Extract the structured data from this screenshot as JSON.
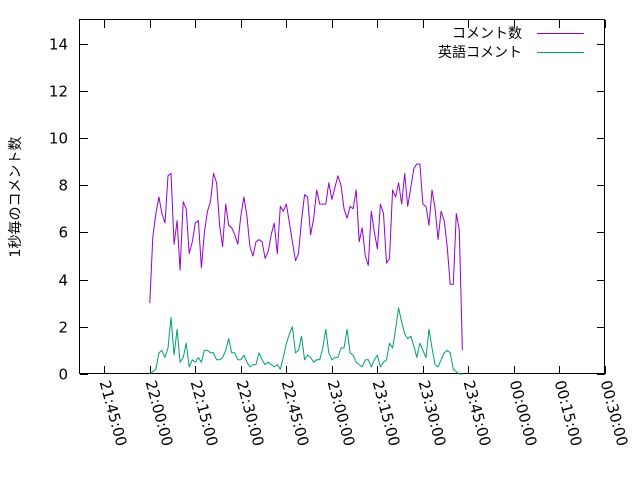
{
  "chart_data": {
    "type": "line",
    "ylabel": "1秒毎のコメント数",
    "xlabel": "",
    "ylim": [
      0,
      15
    ],
    "y_ticks": [
      0,
      2,
      4,
      6,
      8,
      10,
      12,
      14
    ],
    "y_tick_labels": [
      "0",
      "2",
      "4",
      "6",
      "8",
      "10",
      "12",
      "14"
    ],
    "xlim": [
      "21:37:00",
      "00:30:00"
    ],
    "x_ticks": [
      "21:45:00",
      "22:00:00",
      "22:15:00",
      "22:30:00",
      "22:45:00",
      "23:00:00",
      "23:15:00",
      "23:30:00",
      "23:45:00",
      "00:00:00",
      "00:15:00",
      "00:30:00"
    ],
    "grid": false,
    "legend_position": "top-right",
    "series": [
      {
        "name": "コメント数",
        "color": "#9400d3",
        "points": [
          [
            "22:00:00",
            3.0
          ],
          [
            "22:01:00",
            5.8
          ],
          [
            "22:02:00",
            6.8
          ],
          [
            "22:03:00",
            7.5
          ],
          [
            "22:04:00",
            6.8
          ],
          [
            "22:05:00",
            6.4
          ],
          [
            "22:06:00",
            8.4
          ],
          [
            "22:07:00",
            8.5
          ],
          [
            "22:08:00",
            5.5
          ],
          [
            "22:09:00",
            6.5
          ],
          [
            "22:10:00",
            4.4
          ],
          [
            "22:11:00",
            7.3
          ],
          [
            "22:12:00",
            7.0
          ],
          [
            "22:13:00",
            5.1
          ],
          [
            "22:14:00",
            5.6
          ],
          [
            "22:15:00",
            6.4
          ],
          [
            "22:16:00",
            6.5
          ],
          [
            "22:17:00",
            4.5
          ],
          [
            "22:18:00",
            6.0
          ],
          [
            "22:19:00",
            6.9
          ],
          [
            "22:20:00",
            7.3
          ],
          [
            "22:21:00",
            8.5
          ],
          [
            "22:22:00",
            8.1
          ],
          [
            "22:23:00",
            6.3
          ],
          [
            "22:24:00",
            5.4
          ],
          [
            "22:25:00",
            7.2
          ],
          [
            "22:26:00",
            6.3
          ],
          [
            "22:27:00",
            6.2
          ],
          [
            "22:28:00",
            5.9
          ],
          [
            "22:29:00",
            5.5
          ],
          [
            "22:30:00",
            6.7
          ],
          [
            "22:31:00",
            7.5
          ],
          [
            "22:32:00",
            6.7
          ],
          [
            "22:33:00",
            5.4
          ],
          [
            "22:34:00",
            5.0
          ],
          [
            "22:35:00",
            5.6
          ],
          [
            "22:36:00",
            5.7
          ],
          [
            "22:37:00",
            5.6
          ],
          [
            "22:38:00",
            4.9
          ],
          [
            "22:39:00",
            5.2
          ],
          [
            "22:40:00",
            5.9
          ],
          [
            "22:41:00",
            6.4
          ],
          [
            "22:42:00",
            5.1
          ],
          [
            "22:43:00",
            7.1
          ],
          [
            "22:44:00",
            6.9
          ],
          [
            "22:45:00",
            7.2
          ],
          [
            "22:46:00",
            6.4
          ],
          [
            "22:47:00",
            5.6
          ],
          [
            "22:48:00",
            4.8
          ],
          [
            "22:49:00",
            5.1
          ],
          [
            "22:50:00",
            6.5
          ],
          [
            "22:51:00",
            7.6
          ],
          [
            "22:52:00",
            7.5
          ],
          [
            "22:53:00",
            5.9
          ],
          [
            "22:54:00",
            6.6
          ],
          [
            "22:55:00",
            7.8
          ],
          [
            "22:56:00",
            7.2
          ],
          [
            "22:57:00",
            7.2
          ],
          [
            "22:58:00",
            7.2
          ],
          [
            "22:59:00",
            8.1
          ],
          [
            "23:00:00",
            7.4
          ],
          [
            "23:01:00",
            7.9
          ],
          [
            "23:02:00",
            8.4
          ],
          [
            "23:03:00",
            8.0
          ],
          [
            "23:04:00",
            7.0
          ],
          [
            "23:05:00",
            6.6
          ],
          [
            "23:06:00",
            7.1
          ],
          [
            "23:07:00",
            7.0
          ],
          [
            "23:08:00",
            7.8
          ],
          [
            "23:09:00",
            5.6
          ],
          [
            "23:10:00",
            6.2
          ],
          [
            "23:11:00",
            5.0
          ],
          [
            "23:12:00",
            4.6
          ],
          [
            "23:13:00",
            6.9
          ],
          [
            "23:14:00",
            6.0
          ],
          [
            "23:15:00",
            5.3
          ],
          [
            "23:16:00",
            7.2
          ],
          [
            "23:17:00",
            6.8
          ],
          [
            "23:18:00",
            4.7
          ],
          [
            "23:19:00",
            4.9
          ],
          [
            "23:20:00",
            7.8
          ],
          [
            "23:21:00",
            7.5
          ],
          [
            "23:22:00",
            8.1
          ],
          [
            "23:23:00",
            7.2
          ],
          [
            "23:24:00",
            8.5
          ],
          [
            "23:25:00",
            7.1
          ],
          [
            "23:26:00",
            7.9
          ],
          [
            "23:27:00",
            8.7
          ],
          [
            "23:28:00",
            8.9
          ],
          [
            "23:29:00",
            8.9
          ],
          [
            "23:30:00",
            7.2
          ],
          [
            "23:31:00",
            7.1
          ],
          [
            "23:32:00",
            6.3
          ],
          [
            "23:33:00",
            7.8
          ],
          [
            "23:34:00",
            7.0
          ],
          [
            "23:35:00",
            5.7
          ],
          [
            "23:36:00",
            6.9
          ],
          [
            "23:37:00",
            6.5
          ],
          [
            "23:38:00",
            5.4
          ],
          [
            "23:39:00",
            3.8
          ],
          [
            "23:40:00",
            3.8
          ],
          [
            "23:41:00",
            6.8
          ],
          [
            "23:42:00",
            6.1
          ],
          [
            "23:43:00",
            1.0
          ]
        ]
      },
      {
        "name": "英語コメント",
        "color": "#009e73",
        "points": [
          [
            "22:00:00",
            0.0
          ],
          [
            "22:01:00",
            0.1
          ],
          [
            "22:02:00",
            0.2
          ],
          [
            "22:03:00",
            0.9
          ],
          [
            "22:04:00",
            1.0
          ],
          [
            "22:05:00",
            0.7
          ],
          [
            "22:06:00",
            1.1
          ],
          [
            "22:07:00",
            2.4
          ],
          [
            "22:08:00",
            0.8
          ],
          [
            "22:09:00",
            1.9
          ],
          [
            "22:10:00",
            0.5
          ],
          [
            "22:11:00",
            0.7
          ],
          [
            "22:12:00",
            1.3
          ],
          [
            "22:13:00",
            0.3
          ],
          [
            "22:14:00",
            0.6
          ],
          [
            "22:15:00",
            0.5
          ],
          [
            "22:16:00",
            0.7
          ],
          [
            "22:17:00",
            0.5
          ],
          [
            "22:18:00",
            1.0
          ],
          [
            "22:19:00",
            1.0
          ],
          [
            "22:20:00",
            0.9
          ],
          [
            "22:21:00",
            0.9
          ],
          [
            "22:22:00",
            0.6
          ],
          [
            "22:23:00",
            0.6
          ],
          [
            "22:24:00",
            0.7
          ],
          [
            "22:25:00",
            1.0
          ],
          [
            "22:26:00",
            1.5
          ],
          [
            "22:27:00",
            0.9
          ],
          [
            "22:28:00",
            0.9
          ],
          [
            "22:29:00",
            0.6
          ],
          [
            "22:30:00",
            0.6
          ],
          [
            "22:31:00",
            0.8
          ],
          [
            "22:32:00",
            0.5
          ],
          [
            "22:33:00",
            0.3
          ],
          [
            "22:34:00",
            0.4
          ],
          [
            "22:35:00",
            0.4
          ],
          [
            "22:36:00",
            0.9
          ],
          [
            "22:37:00",
            0.6
          ],
          [
            "22:38:00",
            0.4
          ],
          [
            "22:39:00",
            0.5
          ],
          [
            "22:40:00",
            0.4
          ],
          [
            "22:41:00",
            0.3
          ],
          [
            "22:42:00",
            0.4
          ],
          [
            "22:43:00",
            0.2
          ],
          [
            "22:44:00",
            0.7
          ],
          [
            "22:45:00",
            1.3
          ],
          [
            "22:46:00",
            1.7
          ],
          [
            "22:47:00",
            2.0
          ],
          [
            "22:48:00",
            0.9
          ],
          [
            "22:49:00",
            1.0
          ],
          [
            "22:50:00",
            1.6
          ],
          [
            "22:51:00",
            0.6
          ],
          [
            "22:52:00",
            0.8
          ],
          [
            "22:53:00",
            0.7
          ],
          [
            "22:54:00",
            0.5
          ],
          [
            "22:55:00",
            0.6
          ],
          [
            "22:56:00",
            0.6
          ],
          [
            "22:57:00",
            1.1
          ],
          [
            "22:58:00",
            1.9
          ],
          [
            "22:59:00",
            0.9
          ],
          [
            "23:00:00",
            0.6
          ],
          [
            "23:01:00",
            0.7
          ],
          [
            "23:02:00",
            0.7
          ],
          [
            "23:03:00",
            1.1
          ],
          [
            "23:04:00",
            1.1
          ],
          [
            "23:05:00",
            1.9
          ],
          [
            "23:06:00",
            0.9
          ],
          [
            "23:07:00",
            0.8
          ],
          [
            "23:08:00",
            0.5
          ],
          [
            "23:09:00",
            0.4
          ],
          [
            "23:10:00",
            0.3
          ],
          [
            "23:11:00",
            0.6
          ],
          [
            "23:12:00",
            0.6
          ],
          [
            "23:13:00",
            0.3
          ],
          [
            "23:14:00",
            0.6
          ],
          [
            "23:15:00",
            0.8
          ],
          [
            "23:16:00",
            0.3
          ],
          [
            "23:17:00",
            0.5
          ],
          [
            "23:18:00",
            0.6
          ],
          [
            "23:19:00",
            1.3
          ],
          [
            "23:20:00",
            1.1
          ],
          [
            "23:21:00",
            1.9
          ],
          [
            "23:22:00",
            2.8
          ],
          [
            "23:23:00",
            2.2
          ],
          [
            "23:24:00",
            1.7
          ],
          [
            "23:25:00",
            1.5
          ],
          [
            "23:26:00",
            1.6
          ],
          [
            "23:27:00",
            1.2
          ],
          [
            "23:28:00",
            0.7
          ],
          [
            "23:29:00",
            1.3
          ],
          [
            "23:30:00",
            1.0
          ],
          [
            "23:31:00",
            0.7
          ],
          [
            "23:32:00",
            1.9
          ],
          [
            "23:33:00",
            1.1
          ],
          [
            "23:34:00",
            0.4
          ],
          [
            "23:35:00",
            0.3
          ],
          [
            "23:36:00",
            0.6
          ],
          [
            "23:37:00",
            0.9
          ],
          [
            "23:38:00",
            1.0
          ],
          [
            "23:39:00",
            0.9
          ],
          [
            "23:40:00",
            0.2
          ],
          [
            "23:41:00",
            0.1
          ],
          [
            "23:42:00",
            0.0
          ],
          [
            "23:43:00",
            0.0
          ]
        ]
      }
    ]
  }
}
